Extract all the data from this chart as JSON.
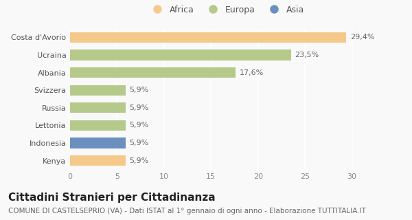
{
  "categories": [
    "Costa d'Avorio",
    "Ucraina",
    "Albania",
    "Svizzera",
    "Russia",
    "Lettonia",
    "Indonesia",
    "Kenya"
  ],
  "values": [
    29.4,
    23.5,
    17.6,
    5.9,
    5.9,
    5.9,
    5.9,
    5.9
  ],
  "labels": [
    "29,4%",
    "23,5%",
    "17,6%",
    "5,9%",
    "5,9%",
    "5,9%",
    "5,9%",
    "5,9%"
  ],
  "colors": [
    "#f5c98a",
    "#b5c98a",
    "#b5c98a",
    "#b5c98a",
    "#b5c98a",
    "#b5c98a",
    "#6b8fbf",
    "#f5c98a"
  ],
  "legend": [
    {
      "label": "Africa",
      "color": "#f5c98a"
    },
    {
      "label": "Europa",
      "color": "#b5c98a"
    },
    {
      "label": "Asia",
      "color": "#6b8fbf"
    }
  ],
  "xlim": [
    0,
    32
  ],
  "xticks": [
    0,
    5,
    10,
    15,
    20,
    25,
    30
  ],
  "title": "Cittadini Stranieri per Cittadinanza",
  "subtitle": "COMUNE DI CASTELSEPRIO (VA) - Dati ISTAT al 1° gennaio di ogni anno - Elaborazione TUTTITALIA.IT",
  "bg_color": "#f9f9f9",
  "bar_height": 0.6,
  "title_fontsize": 11,
  "subtitle_fontsize": 7.5,
  "label_fontsize": 8,
  "tick_fontsize": 8
}
